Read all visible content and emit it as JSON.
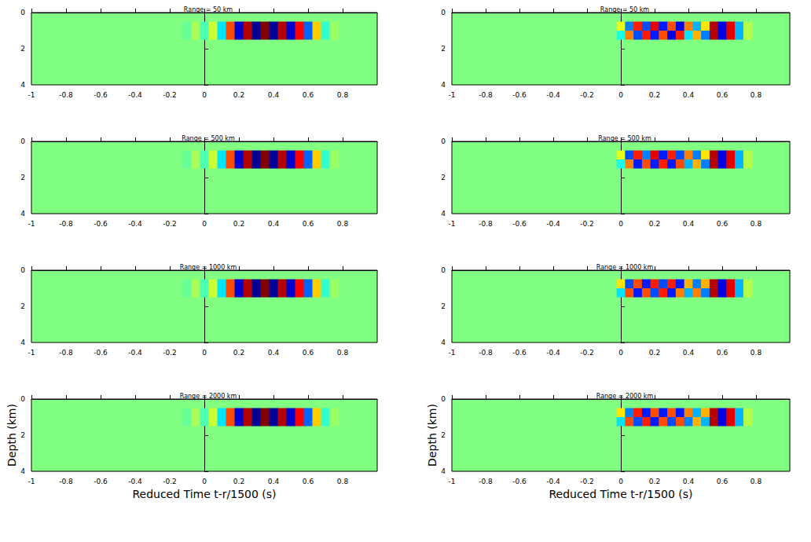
{
  "chart_data": [
    {
      "type": "heatmap",
      "title": "Range = 50 km",
      "x": [
        -0.1,
        -0.05,
        0,
        0.05,
        0.1,
        0.15,
        0.2,
        0.25,
        0.3,
        0.35,
        0.4,
        0.45,
        0.5,
        0.55,
        0.6,
        0.65,
        0.7,
        0.75
      ],
      "depth": [
        0.75,
        1.25
      ],
      "values": [
        [
          -0.05,
          0.08,
          -0.1,
          0.15,
          -0.3,
          0.6,
          -0.85,
          0.9,
          -0.95,
          1.0,
          -0.95,
          0.9,
          -0.85,
          0.75,
          -0.55,
          0.35,
          -0.15,
          0.05
        ],
        [
          -0.05,
          0.08,
          -0.1,
          0.15,
          -0.3,
          0.6,
          -0.85,
          0.9,
          -0.95,
          1.0,
          -0.95,
          0.9,
          -0.85,
          0.75,
          -0.55,
          0.35,
          -0.15,
          0.05
        ]
      ],
      "color_range": [
        -1,
        1
      ],
      "xlim": [
        -1,
        1
      ],
      "xticks": [
        -1,
        -0.8,
        -0.6,
        -0.4,
        -0.2,
        0,
        0.2,
        0.4,
        0.6,
        0.8
      ],
      "ylim": [
        0,
        4
      ],
      "yticks": [
        0,
        2,
        4
      ]
    },
    {
      "type": "heatmap",
      "title": "Range = 500 km",
      "x": [
        -0.1,
        -0.05,
        0,
        0.05,
        0.1,
        0.15,
        0.2,
        0.25,
        0.3,
        0.35,
        0.4,
        0.45,
        0.5,
        0.55,
        0.6,
        0.65,
        0.7,
        0.75
      ],
      "depth": [
        0.75,
        1.25
      ],
      "values": [
        [
          -0.05,
          0.08,
          -0.1,
          0.15,
          -0.3,
          0.6,
          -0.85,
          0.9,
          -0.95,
          1.0,
          -0.95,
          0.9,
          -0.85,
          0.75,
          -0.55,
          0.35,
          -0.15,
          0.05
        ],
        [
          -0.05,
          0.08,
          -0.1,
          0.15,
          -0.3,
          0.6,
          -0.85,
          0.9,
          -0.95,
          1.0,
          -0.95,
          0.9,
          -0.85,
          0.75,
          -0.55,
          0.35,
          -0.15,
          0.05
        ]
      ],
      "color_range": [
        -1,
        1
      ],
      "xlim": [
        -1,
        1
      ],
      "xticks": [
        -1,
        -0.8,
        -0.6,
        -0.4,
        -0.2,
        0,
        0.2,
        0.4,
        0.6,
        0.8
      ],
      "ylim": [
        0,
        4
      ],
      "yticks": [
        0,
        2,
        4
      ]
    },
    {
      "type": "heatmap",
      "title": "Range = 1000 km",
      "x": [
        -0.1,
        -0.05,
        0,
        0.05,
        0.1,
        0.15,
        0.2,
        0.25,
        0.3,
        0.35,
        0.4,
        0.45,
        0.5,
        0.55,
        0.6,
        0.65,
        0.7,
        0.75
      ],
      "depth": [
        0.75,
        1.25
      ],
      "values": [
        [
          -0.05,
          0.08,
          -0.1,
          0.15,
          -0.3,
          0.6,
          -0.85,
          0.9,
          -0.95,
          1.0,
          -0.95,
          0.9,
          -0.85,
          0.75,
          -0.55,
          0.35,
          -0.15,
          0.05
        ],
        [
          -0.05,
          0.08,
          -0.1,
          0.15,
          -0.3,
          0.6,
          -0.85,
          0.9,
          -0.95,
          1.0,
          -0.95,
          0.9,
          -0.85,
          0.75,
          -0.55,
          0.35,
          -0.15,
          0.05
        ]
      ],
      "color_range": [
        -1,
        1
      ],
      "xlim": [
        -1,
        1
      ],
      "xticks": [
        -1,
        -0.8,
        -0.6,
        -0.4,
        -0.2,
        0,
        0.2,
        0.4,
        0.6,
        0.8
      ],
      "ylim": [
        0,
        4
      ],
      "yticks": [
        0,
        2,
        4
      ]
    },
    {
      "type": "heatmap",
      "title": "Range = 2000 km",
      "x": [
        -0.1,
        -0.05,
        0,
        0.05,
        0.1,
        0.15,
        0.2,
        0.25,
        0.3,
        0.35,
        0.4,
        0.45,
        0.5,
        0.55,
        0.6,
        0.65,
        0.7,
        0.75
      ],
      "depth": [
        0.75,
        1.25
      ],
      "values": [
        [
          -0.05,
          0.08,
          -0.1,
          0.15,
          -0.3,
          0.6,
          -0.85,
          0.9,
          -0.95,
          1.0,
          -0.95,
          0.9,
          -0.85,
          0.75,
          -0.55,
          0.35,
          -0.15,
          0.05
        ],
        [
          -0.05,
          0.08,
          -0.1,
          0.15,
          -0.3,
          0.6,
          -0.85,
          0.9,
          -0.95,
          1.0,
          -0.95,
          0.9,
          -0.85,
          0.75,
          -0.55,
          0.35,
          -0.15,
          0.05
        ]
      ],
      "color_range": [
        -1,
        1
      ],
      "xlim": [
        -1,
        1
      ],
      "xticks": [
        -1,
        -0.8,
        -0.6,
        -0.4,
        -0.2,
        0,
        0.2,
        0.4,
        0.6,
        0.8
      ],
      "ylim": [
        0,
        4
      ],
      "yticks": [
        0,
        2,
        4
      ],
      "xlabel": "Reduced Time t-r/1500 (s)",
      "ylabel": "Depth (km)"
    },
    {
      "type": "heatmap",
      "title": "Range = 50 km",
      "x": [
        -0.1,
        -0.05,
        0,
        0.05,
        0.1,
        0.15,
        0.2,
        0.25,
        0.3,
        0.35,
        0.4,
        0.45,
        0.5,
        0.55,
        0.6,
        0.65,
        0.7,
        0.75
      ],
      "depth": [
        0.75,
        1.25
      ],
      "values": [
        [
          0,
          0,
          0.2,
          -0.5,
          0.7,
          -0.6,
          0.8,
          -0.7,
          0.6,
          -0.8,
          0.5,
          -0.4,
          0.3,
          0.9,
          -0.8,
          0.8,
          -0.4,
          0.1
        ],
        [
          0,
          0,
          -0.2,
          0.5,
          -0.6,
          0.7,
          -0.7,
          0.6,
          -0.8,
          0.7,
          -0.3,
          0.4,
          -0.5,
          0.9,
          -0.8,
          0.8,
          -0.4,
          0.1
        ]
      ],
      "color_range": [
        -1,
        1
      ],
      "xlim": [
        -1,
        1
      ],
      "xticks": [
        -1,
        -0.8,
        -0.6,
        -0.4,
        -0.2,
        0,
        0.2,
        0.4,
        0.6,
        0.8
      ],
      "ylim": [
        0,
        4
      ],
      "yticks": [
        0,
        2,
        4
      ]
    },
    {
      "type": "heatmap",
      "title": "Range = 500 km",
      "x": [
        -0.1,
        -0.05,
        0,
        0.05,
        0.1,
        0.15,
        0.2,
        0.25,
        0.3,
        0.35,
        0.4,
        0.45,
        0.5,
        0.55,
        0.6,
        0.65,
        0.7,
        0.75
      ],
      "depth": [
        0.75,
        1.25
      ],
      "values": [
        [
          0,
          0,
          0.2,
          -0.6,
          0.7,
          -0.5,
          0.8,
          -0.7,
          0.7,
          -0.6,
          0.5,
          -0.5,
          0.3,
          0.9,
          -0.8,
          0.8,
          -0.4,
          0.1
        ],
        [
          0,
          0,
          -0.2,
          0.5,
          -0.7,
          0.6,
          -0.7,
          0.7,
          -0.7,
          0.6,
          -0.4,
          0.4,
          -0.5,
          0.9,
          -0.8,
          0.8,
          -0.4,
          0.1
        ]
      ],
      "color_range": [
        -1,
        1
      ],
      "xlim": [
        -1,
        1
      ],
      "xticks": [
        -1,
        -0.8,
        -0.6,
        -0.4,
        -0.2,
        0,
        0.2,
        0.4,
        0.6,
        0.8
      ],
      "ylim": [
        0,
        4
      ],
      "yticks": [
        0,
        2,
        4
      ]
    },
    {
      "type": "heatmap",
      "title": "Range = 1000 km",
      "x": [
        -0.1,
        -0.05,
        0,
        0.05,
        0.1,
        0.15,
        0.2,
        0.25,
        0.3,
        0.35,
        0.4,
        0.45,
        0.5,
        0.55,
        0.6,
        0.65,
        0.7,
        0.75
      ],
      "depth": [
        0.75,
        1.25
      ],
      "values": [
        [
          0,
          0,
          0.3,
          -0.6,
          0.6,
          -0.7,
          0.7,
          -0.6,
          0.7,
          -0.7,
          0.4,
          -0.5,
          0.4,
          0.9,
          -0.8,
          0.8,
          -0.4,
          0.1
        ],
        [
          0,
          0,
          -0.3,
          0.6,
          -0.7,
          0.6,
          -0.6,
          0.7,
          -0.7,
          0.5,
          -0.4,
          0.5,
          -0.5,
          0.9,
          -0.8,
          0.8,
          -0.4,
          0.1
        ]
      ],
      "color_range": [
        -1,
        1
      ],
      "xlim": [
        -1,
        1
      ],
      "xticks": [
        -1,
        -0.8,
        -0.6,
        -0.4,
        -0.2,
        0,
        0.2,
        0.4,
        0.6,
        0.8
      ],
      "ylim": [
        0,
        4
      ],
      "yticks": [
        0,
        2,
        4
      ]
    },
    {
      "type": "heatmap",
      "title": "Range = 2000 km",
      "x": [
        -0.1,
        -0.05,
        0,
        0.05,
        0.1,
        0.15,
        0.2,
        0.25,
        0.3,
        0.35,
        0.4,
        0.45,
        0.5,
        0.55,
        0.6,
        0.65,
        0.7,
        0.75
      ],
      "depth": [
        0.75,
        1.25
      ],
      "values": [
        [
          0,
          0,
          0.3,
          -0.5,
          0.7,
          -0.7,
          0.6,
          -0.7,
          0.6,
          -0.7,
          0.5,
          -0.4,
          0.4,
          0.9,
          -0.8,
          0.8,
          -0.4,
          0.1
        ],
        [
          0,
          0,
          -0.3,
          0.6,
          -0.6,
          0.7,
          -0.7,
          0.6,
          -0.6,
          0.6,
          -0.5,
          0.4,
          -0.4,
          0.9,
          -0.8,
          0.8,
          -0.4,
          0.1
        ]
      ],
      "color_range": [
        -1,
        1
      ],
      "xlim": [
        -1,
        1
      ],
      "xticks": [
        -1,
        -0.8,
        -0.6,
        -0.4,
        -0.2,
        0,
        0.2,
        0.4,
        0.6,
        0.8
      ],
      "ylim": [
        0,
        4
      ],
      "yticks": [
        0,
        2,
        4
      ],
      "xlabel": "Reduced Time t-r/1500 (s)",
      "ylabel": "Depth (km)"
    }
  ]
}
